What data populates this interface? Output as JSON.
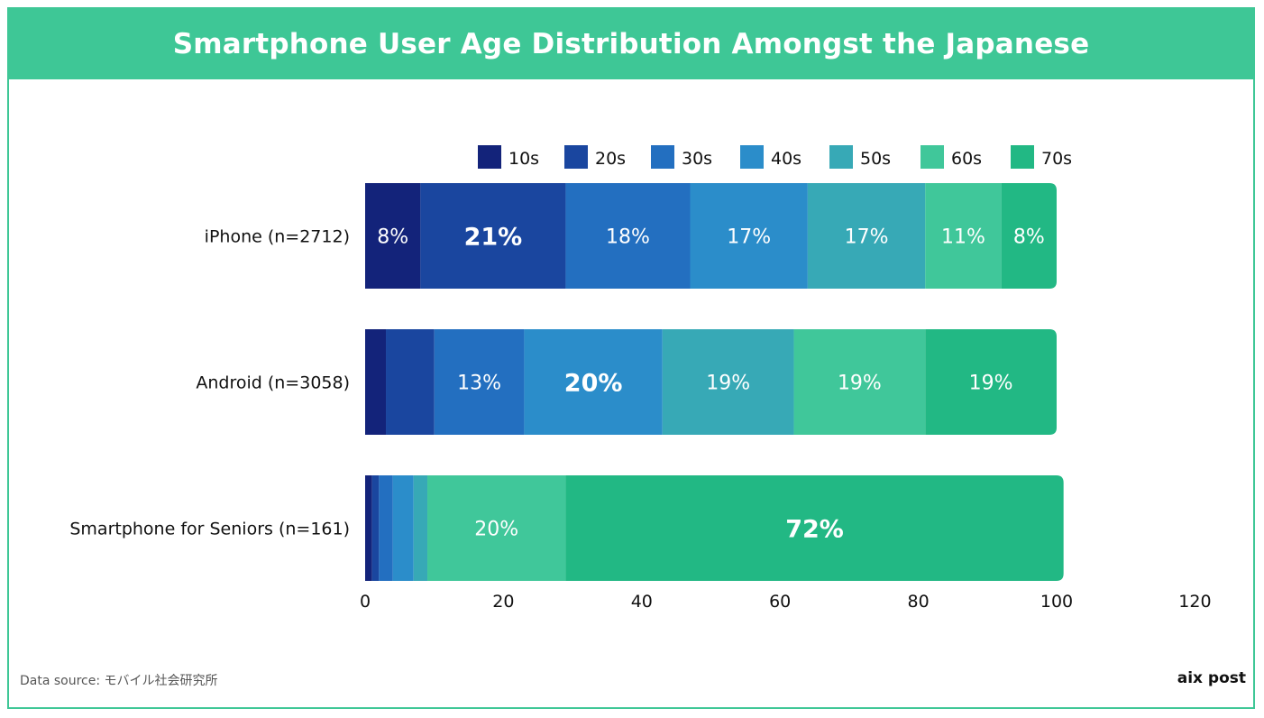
{
  "title": "Smartphone User Age Distribution Amongst the Japanese",
  "footer": {
    "source": "Data source: モバイル社会研究所",
    "brand": "aix post"
  },
  "colors": {
    "accent": "#3ec796",
    "series": [
      "#13237a",
      "#1a469f",
      "#236fc0",
      "#2b8dca",
      "#37a9b6",
      "#40c79a",
      "#22b884"
    ]
  },
  "chart_data": {
    "type": "bar",
    "orientation": "horizontal",
    "stacked": true,
    "categories": [
      "iPhone (n=2712)",
      "Android (n=3058)",
      "Smartphone for Seniors (n=161)"
    ],
    "series": [
      {
        "name": "10s",
        "values": [
          8,
          3,
          1
        ]
      },
      {
        "name": "20s",
        "values": [
          21,
          7,
          1
        ]
      },
      {
        "name": "30s",
        "values": [
          18,
          13,
          2
        ]
      },
      {
        "name": "40s",
        "values": [
          17,
          20,
          3
        ]
      },
      {
        "name": "50s",
        "values": [
          17,
          19,
          2
        ]
      },
      {
        "name": "60s",
        "values": [
          11,
          19,
          20
        ]
      },
      {
        "name": "70s",
        "values": [
          8,
          19,
          72
        ]
      }
    ],
    "data_labels": [
      [
        "8%",
        "21%",
        "18%",
        "17%",
        "17%",
        "11%",
        "8%"
      ],
      [
        "",
        "",
        "13%",
        "20%",
        "19%",
        "19%",
        "19%"
      ],
      [
        "",
        "",
        "",
        "",
        "",
        "20%",
        "72%"
      ]
    ],
    "bold_labels": [
      [
        1
      ],
      [
        3
      ],
      [
        6
      ]
    ],
    "xlim": [
      0,
      120
    ],
    "xticks": [
      "0",
      "20",
      "40",
      "60",
      "80",
      "100",
      "120"
    ],
    "grid": false,
    "legend_position": "top"
  }
}
